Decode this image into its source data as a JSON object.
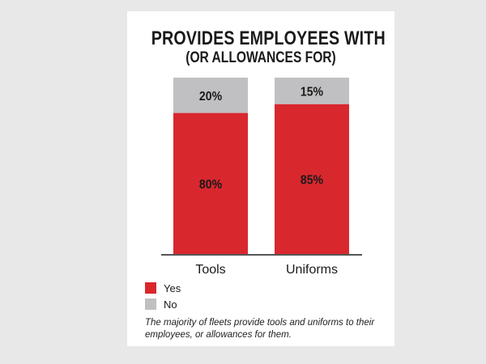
{
  "chart_data": {
    "type": "bar",
    "stacked": true,
    "title": "PROVIDES EMPLOYEES WITH",
    "subtitle": "(OR ALLOWANCES FOR)",
    "categories": [
      "Tools",
      "Uniforms"
    ],
    "series": [
      {
        "name": "Yes",
        "values": [
          80,
          85
        ],
        "labels": [
          "80%",
          "85%"
        ],
        "color": "#d9272e"
      },
      {
        "name": "No",
        "values": [
          20,
          15
        ],
        "labels": [
          "20%",
          "15%"
        ],
        "color": "#c0c0c2"
      }
    ],
    "unit": "%",
    "ylim": [
      0,
      100
    ],
    "legend_position": "bottom-left",
    "caption": "The majority of fleets provide tools and uniforms to their employees, or allowances for them."
  },
  "colors": {
    "background": "#e8e8e8",
    "panel": "#ffffff",
    "baseline": "#555555"
  }
}
